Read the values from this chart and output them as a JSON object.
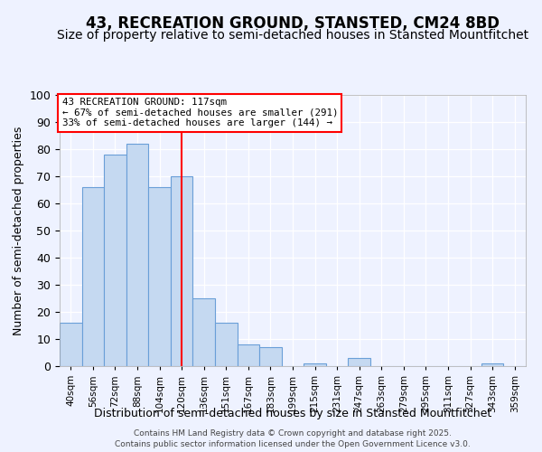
{
  "title": "43, RECREATION GROUND, STANSTED, CM24 8BD",
  "subtitle": "Size of property relative to semi-detached houses in Stansted Mountfitchet",
  "xlabel": "Distribution of semi-detached houses by size in Stansted Mountfitchet",
  "ylabel": "Number of semi-detached properties",
  "bar_labels": [
    "40sqm",
    "56sqm",
    "72sqm",
    "88sqm",
    "104sqm",
    "120sqm",
    "136sqm",
    "151sqm",
    "167sqm",
    "183sqm",
    "199sqm",
    "215sqm",
    "231sqm",
    "247sqm",
    "263sqm",
    "279sqm",
    "295sqm",
    "311sqm",
    "327sqm",
    "343sqm",
    "359sqm"
  ],
  "bar_values": [
    16,
    66,
    78,
    82,
    66,
    70,
    25,
    16,
    8,
    7,
    0,
    1,
    0,
    3,
    0,
    0,
    0,
    0,
    0,
    1,
    0
  ],
  "bar_color": "#c5d9f1",
  "bar_edge_color": "#6a9fd8",
  "vline_x": 5,
  "vline_color": "red",
  "ylim": [
    0,
    100
  ],
  "annotation_title": "43 RECREATION GROUND: 117sqm",
  "annotation_line1": "← 67% of semi-detached houses are smaller (291)",
  "annotation_line2": "33% of semi-detached houses are larger (144) →",
  "annotation_box_color": "white",
  "annotation_box_edge": "red",
  "footer1": "Contains HM Land Registry data © Crown copyright and database right 2025.",
  "footer2": "Contains public sector information licensed under the Open Government Licence v3.0.",
  "title_fontsize": 12,
  "subtitle_fontsize": 10,
  "bg_color": "#eef2ff"
}
